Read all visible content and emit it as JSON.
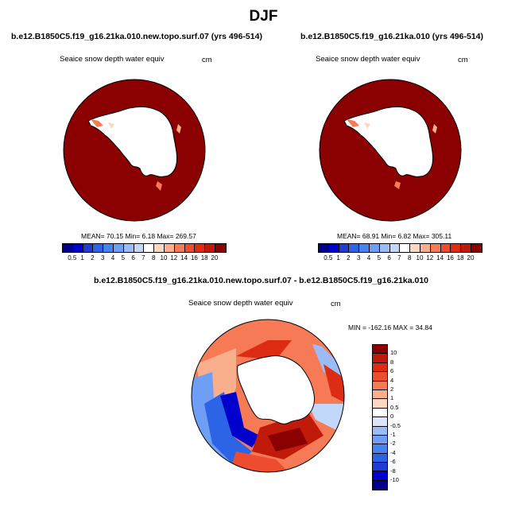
{
  "title": "DJF",
  "panels": [
    {
      "case": "b.e12.B1850C5.f19_g16.21ka.010.new.topo.surf.07 (yrs 496-514)",
      "variable": "Seaice snow depth water equiv",
      "units": "cm",
      "stats": "MEAN=  70.15  Min=   6.18  Max= 269.57"
    },
    {
      "case": "b.e12.B1850C5.f19_g16.21ka.010 (yrs 496-514)",
      "variable": "Seaice snow depth water equiv",
      "units": "cm",
      "stats": "MEAN=  68.91  Min=   6.82  Max= 305.11"
    }
  ],
  "difference": {
    "case": "b.e12.B1850C5.f19_g16.21ka.010.new.topo.surf.07 - b.e12.B1850C5.f19_g16.21ka.010",
    "variable": "Seaice snow depth water equiv",
    "units": "cm",
    "stats": "MIN = -162.16 MAX =  34.84"
  },
  "colorbar": {
    "labels": [
      "0.5",
      "1",
      "2",
      "3",
      "4",
      "5",
      "6",
      "7",
      "8",
      "10",
      "12",
      "14",
      "16",
      "18",
      "20"
    ],
    "colors": [
      "#00008b",
      "#0000cd",
      "#1e3cd2",
      "#2d64e6",
      "#4682f0",
      "#6e9ef5",
      "#9bbcf8",
      "#c3d7fa",
      "#ffffff",
      "#fcd8c0",
      "#f9af8c",
      "#f57a55",
      "#ee4c2e",
      "#dc2d14",
      "#c01a0a",
      "#8b0000"
    ]
  },
  "diff_colorbar": {
    "labels": [
      "10",
      "8",
      "6",
      "4",
      "2",
      "1",
      "0.5",
      "0",
      "-0.5",
      "-1",
      "-2",
      "-4",
      "-6",
      "-8",
      "-10"
    ],
    "colors": [
      "#8b0000",
      "#c01a0a",
      "#dc2d14",
      "#ee4c2e",
      "#f57a55",
      "#f9af8c",
      "#fcd8c0",
      "#ffffff",
      "#dbe6fb",
      "#9bbcf8",
      "#6e9ef5",
      "#4682f0",
      "#2d64e6",
      "#1e3cd2",
      "#0000cd",
      "#00008b"
    ]
  }
}
